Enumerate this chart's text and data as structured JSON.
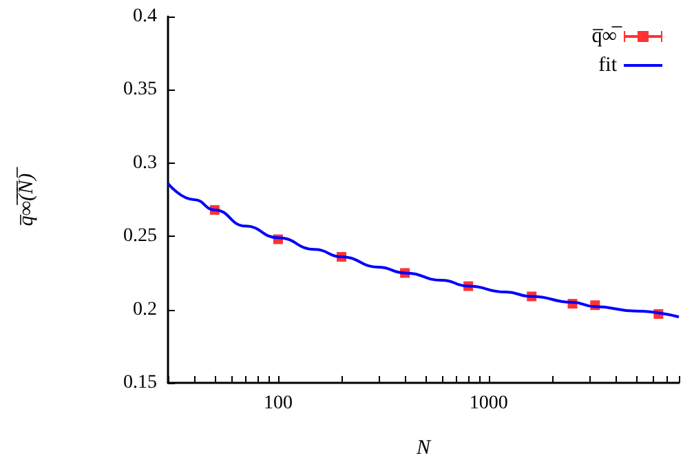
{
  "chart_data": {
    "type": "scatter",
    "xlabel": "N",
    "ylabel": "q̅∞̅(̅N̅)̅",
    "log": "x",
    "xlim": [
      30,
      8000
    ],
    "ylim": [
      0.15,
      0.4
    ],
    "xticks": [
      {
        "value": 30,
        "label": null
      },
      {
        "value": 40,
        "label": null
      },
      {
        "value": 50,
        "label": null
      },
      {
        "value": 60,
        "label": null
      },
      {
        "value": 70,
        "label": null
      },
      {
        "value": 80,
        "label": null
      },
      {
        "value": 90,
        "label": null
      },
      100,
      {
        "value": 200,
        "label": null
      },
      {
        "value": 300,
        "label": null
      },
      {
        "value": 400,
        "label": null
      },
      {
        "value": 500,
        "label": null
      },
      {
        "value": 600,
        "label": null
      },
      {
        "value": 700,
        "label": null
      },
      {
        "value": 800,
        "label": null
      },
      {
        "value": 900,
        "label": null
      },
      1000,
      {
        "value": 2000,
        "label": null
      },
      {
        "value": 3000,
        "label": null
      },
      {
        "value": 4000,
        "label": null
      },
      {
        "value": 5000,
        "label": null
      },
      {
        "value": 6000,
        "label": null
      },
      {
        "value": 7000,
        "label": null
      },
      {
        "value": 8000,
        "label": null
      }
    ],
    "yticks": [
      0.15,
      0.2,
      0.25,
      0.3,
      0.35,
      0.4
    ],
    "grid": false,
    "legend": "top right",
    "series": [
      {
        "name": "q̅∞̅",
        "marker": "square",
        "color": "#ff0000",
        "x": [
          50,
          100,
          200,
          400,
          800,
          1600,
          2500,
          3200,
          6400
        ],
        "values": [
          0.268,
          0.248,
          0.236,
          0.225,
          0.216,
          0.209,
          0.204,
          0.203,
          0.197
        ]
      },
      {
        "name": "fit",
        "type": "line",
        "color": "#0000ff",
        "line_style": "solid",
        "x": [
          30,
          40,
          50,
          70,
          100,
          150,
          200,
          300,
          400,
          600,
          800,
          1200,
          1600,
          2500,
          3200,
          5000,
          8000
        ],
        "values": [
          0.286,
          0.275,
          0.268,
          0.257,
          0.249,
          0.241,
          0.236,
          0.229,
          0.225,
          0.22,
          0.216,
          0.212,
          0.209,
          0.205,
          0.202,
          0.199,
          0.195
        ]
      }
    ]
  }
}
